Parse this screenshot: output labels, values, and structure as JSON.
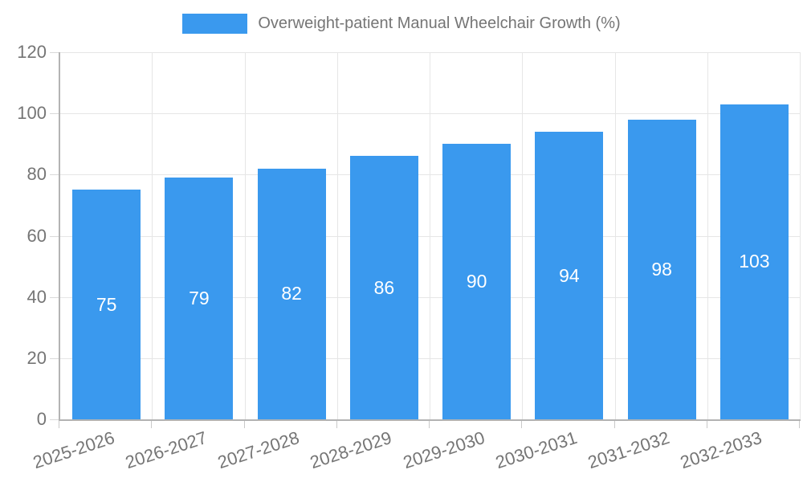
{
  "legend": {
    "label": "Overweight-patient Manual Wheelchair Growth (%)",
    "swatch_color": "#3a99ee"
  },
  "chart_data": {
    "type": "bar",
    "title": "Overweight-patient Manual Wheelchair Growth (%)",
    "categories": [
      "2025-2026",
      "2026-2027",
      "2027-2028",
      "2028-2029",
      "2029-2030",
      "2030-2031",
      "2031-2032",
      "2032-2033"
    ],
    "values": [
      75,
      79,
      82,
      86,
      90,
      94,
      98,
      103
    ],
    "xlabel": "",
    "ylabel": "",
    "ylim": [
      0,
      120
    ],
    "yticks": [
      0,
      20,
      40,
      60,
      80,
      100,
      120
    ],
    "grid": true,
    "legend_position": "top",
    "bar_color": "#3a99ee",
    "bar_label_color": "#ffffff",
    "axis_color": "#b3b3b3",
    "grid_color": "#e6e6e6",
    "text_color": "#757575"
  }
}
